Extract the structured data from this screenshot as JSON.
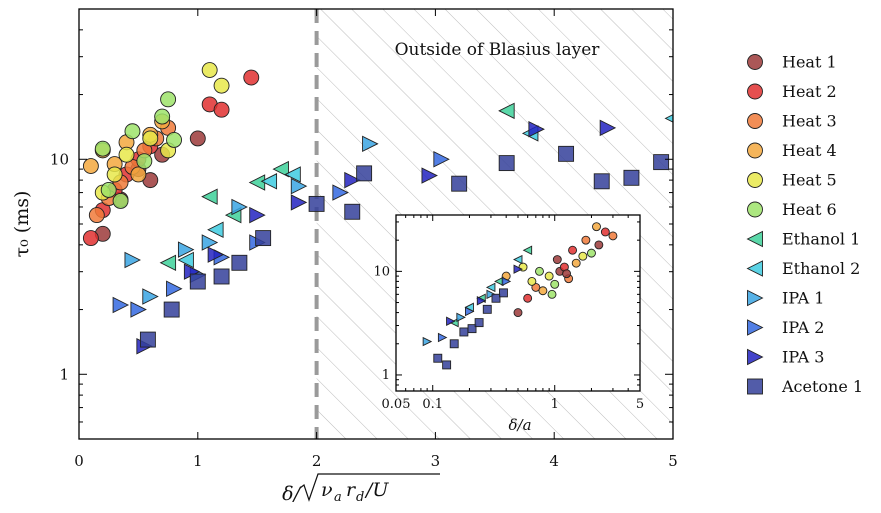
{
  "chart_data": [
    {
      "type": "scatter",
      "title": "",
      "xlabel": "δ/√(ν_a r_d/U)",
      "ylabel": "τ₀ (ms)",
      "xlim": [
        0,
        5
      ],
      "ylim": [
        0.5,
        50
      ],
      "yscale": "log",
      "xticks": [
        "0",
        "1",
        "2",
        "3",
        "4",
        "5"
      ],
      "yticks": [
        "1",
        "10"
      ],
      "grid": false,
      "legend_position": "outside-right",
      "vline": {
        "x": 2,
        "style": "dashed",
        "color": "#9a9a9a"
      },
      "shaded_region": {
        "x_from": 2,
        "x_to": 5,
        "pattern": "diagonal-hatch",
        "label": "Outside of Blasius layer"
      },
      "series": [
        {
          "name": "Heat 1",
          "marker": "circle",
          "color": "#9c3a3a",
          "points": [
            [
              0.2,
              4.5
            ],
            [
              0.35,
              6.5
            ],
            [
              0.5,
              9
            ],
            [
              0.6,
              8
            ],
            [
              0.7,
              10.5
            ],
            [
              1.0,
              12.5
            ]
          ]
        },
        {
          "name": "Heat 2",
          "marker": "circle",
          "color": "#e03030",
          "points": [
            [
              0.1,
              4.3
            ],
            [
              0.2,
              5.8
            ],
            [
              0.3,
              7.2
            ],
            [
              0.4,
              8.5
            ],
            [
              0.5,
              10
            ],
            [
              0.6,
              11.5
            ],
            [
              1.1,
              18
            ],
            [
              1.2,
              17
            ],
            [
              1.45,
              24
            ]
          ]
        },
        {
          "name": "Heat 3",
          "marker": "circle",
          "color": "#f07a3a",
          "points": [
            [
              0.15,
              5.5
            ],
            [
              0.25,
              6.6
            ],
            [
              0.35,
              7.8
            ],
            [
              0.45,
              9.2
            ],
            [
              0.55,
              11
            ],
            [
              0.65,
              12.5
            ],
            [
              0.75,
              14
            ]
          ]
        },
        {
          "name": "Heat 4",
          "marker": "circle",
          "color": "#f3a83e",
          "points": [
            [
              0.1,
              9.3
            ],
            [
              0.2,
              11
            ],
            [
              0.3,
              9.5
            ],
            [
              0.4,
              12
            ],
            [
              0.5,
              8.5
            ],
            [
              0.6,
              13
            ],
            [
              0.7,
              15
            ]
          ]
        },
        {
          "name": "Heat 5",
          "marker": "circle",
          "color": "#e7e74a",
          "points": [
            [
              0.2,
              7
            ],
            [
              0.3,
              8.5
            ],
            [
              0.4,
              10.5
            ],
            [
              0.6,
              12.5
            ],
            [
              0.75,
              11
            ],
            [
              1.1,
              26
            ],
            [
              1.2,
              22
            ]
          ]
        },
        {
          "name": "Heat 6",
          "marker": "circle",
          "color": "#9ee36a",
          "points": [
            [
              0.2,
              11.2
            ],
            [
              0.25,
              7.2
            ],
            [
              0.35,
              6.4
            ],
            [
              0.45,
              13.5
            ],
            [
              0.55,
              9.8
            ],
            [
              0.75,
              19
            ],
            [
              0.7,
              15.8
            ],
            [
              0.8,
              12.3
            ]
          ]
        },
        {
          "name": "Ethanol 1",
          "marker": "triangle-left",
          "color": "#3ed19a",
          "points": [
            [
              0.75,
              3.3
            ],
            [
              1.1,
              6.7
            ],
            [
              1.3,
              5.5
            ],
            [
              1.5,
              7.8
            ],
            [
              1.7,
              9.0
            ],
            [
              3.6,
              16.8
            ]
          ]
        },
        {
          "name": "Ethanol 2",
          "marker": "triangle-left",
          "color": "#3ecbe0",
          "points": [
            [
              0.9,
              3.4
            ],
            [
              1.15,
              4.7
            ],
            [
              1.6,
              7.9
            ],
            [
              1.8,
              8.5
            ],
            [
              3.8,
              13.2
            ],
            [
              5.0,
              15.5
            ]
          ]
        },
        {
          "name": "IPA 1",
          "marker": "triangle-right",
          "color": "#3aa4e3",
          "points": [
            [
              0.45,
              3.4
            ],
            [
              0.6,
              2.3
            ],
            [
              0.9,
              3.8
            ],
            [
              1.1,
              4.1
            ],
            [
              1.35,
              6.0
            ],
            [
              1.85,
              7.5
            ],
            [
              2.45,
              11.8
            ]
          ]
        },
        {
          "name": "IPA 2",
          "marker": "triangle-right",
          "color": "#3468e0",
          "points": [
            [
              0.35,
              2.1
            ],
            [
              0.5,
              2.0
            ],
            [
              0.8,
              2.5
            ],
            [
              1.0,
              2.9
            ],
            [
              1.2,
              3.5
            ],
            [
              1.5,
              4.1
            ],
            [
              2.2,
              7.0
            ],
            [
              3.05,
              10.0
            ]
          ]
        },
        {
          "name": "IPA 3",
          "marker": "triangle-right",
          "color": "#2323c0",
          "points": [
            [
              0.55,
              1.35
            ],
            [
              0.95,
              3.0
            ],
            [
              1.15,
              3.6
            ],
            [
              1.5,
              5.5
            ],
            [
              1.85,
              6.3
            ],
            [
              2.3,
              8.0
            ],
            [
              2.95,
              8.4
            ],
            [
              3.85,
              13.8
            ],
            [
              4.45,
              14.0
            ]
          ]
        },
        {
          "name": "Acetone 1",
          "marker": "square",
          "color": "#34409a",
          "points": [
            [
              0.58,
              1.45
            ],
            [
              0.78,
              2.0
            ],
            [
              1.0,
              2.7
            ],
            [
              1.2,
              2.85
            ],
            [
              1.35,
              3.3
            ],
            [
              1.55,
              4.3
            ],
            [
              2.0,
              6.2
            ],
            [
              2.3,
              5.7
            ],
            [
              2.4,
              8.6
            ],
            [
              3.2,
              7.7
            ],
            [
              3.6,
              9.6
            ],
            [
              4.1,
              10.6
            ],
            [
              4.4,
              7.9
            ],
            [
              4.65,
              8.2
            ],
            [
              4.9,
              9.7
            ]
          ]
        }
      ]
    },
    {
      "type": "scatter",
      "role": "inset",
      "xlabel": "δ/a",
      "xscale": "log",
      "yscale": "log",
      "xlim": [
        0.05,
        5
      ],
      "ylim": [
        0.7,
        35
      ],
      "xticks": [
        "0.05",
        "0.1",
        "1",
        "5"
      ],
      "yticks": [
        "1",
        "10"
      ],
      "series": [
        {
          "name": "Heat",
          "marker": "circle",
          "colors": [
            "#9c3a3a",
            "#e03030",
            "#f07a3a",
            "#f3a83e",
            "#e7e74a",
            "#9ee36a"
          ],
          "points": [
            [
              0.5,
              4
            ],
            [
              0.6,
              5.5
            ],
            [
              0.7,
              7
            ],
            [
              0.8,
              6.5
            ],
            [
              0.9,
              9
            ],
            [
              1.0,
              7.5
            ],
            [
              1.1,
              10
            ],
            [
              1.2,
              11
            ],
            [
              1.3,
              8.5
            ],
            [
              1.5,
              12
            ],
            [
              1.7,
              14
            ],
            [
              2.0,
              15
            ],
            [
              2.3,
              18
            ],
            [
              2.6,
              24
            ],
            [
              3.0,
              22
            ],
            [
              0.4,
              9
            ],
            [
              0.55,
              11
            ],
            [
              0.75,
              10
            ],
            [
              1.05,
              13
            ],
            [
              1.4,
              16
            ],
            [
              1.8,
              20
            ],
            [
              2.2,
              27
            ],
            [
              0.65,
              8
            ],
            [
              0.95,
              6
            ],
            [
              1.25,
              9.5
            ]
          ]
        },
        {
          "name": "Ethanol",
          "marker": "triangle-left",
          "colors": [
            "#3ed19a",
            "#3ecbe0"
          ],
          "points": [
            [
              0.15,
              3.2
            ],
            [
              0.2,
              4.5
            ],
            [
              0.25,
              5.5
            ],
            [
              0.3,
              7
            ],
            [
              0.35,
              8
            ],
            [
              0.5,
              13
            ],
            [
              0.6,
              16
            ]
          ]
        },
        {
          "name": "IPA",
          "marker": "triangle-right",
          "colors": [
            "#3aa4e3",
            "#3468e0",
            "#2323c0"
          ],
          "points": [
            [
              0.09,
              2.1
            ],
            [
              0.12,
              2.3
            ],
            [
              0.14,
              3.3
            ],
            [
              0.17,
              3.6
            ],
            [
              0.2,
              4.1
            ],
            [
              0.25,
              5.2
            ],
            [
              0.3,
              6
            ],
            [
              0.4,
              8
            ],
            [
              0.5,
              10.5
            ]
          ]
        },
        {
          "name": "Acetone",
          "marker": "square",
          "colors": [
            "#34409a"
          ],
          "points": [
            [
              0.11,
              1.45
            ],
            [
              0.13,
              1.25
            ],
            [
              0.15,
              2.0
            ],
            [
              0.18,
              2.6
            ],
            [
              0.21,
              2.8
            ],
            [
              0.24,
              3.2
            ],
            [
              0.28,
              4.3
            ],
            [
              0.33,
              5.5
            ],
            [
              0.38,
              6.2
            ]
          ]
        }
      ]
    }
  ],
  "labels": {
    "region_label": "Outside of Blasius layer",
    "ylabel": "τ₀ (ms)",
    "xlabel_prefix": "δ/",
    "xlabel_root": "ν",
    "xlabel_sub_a": "a",
    "xlabel_r": "r",
    "xlabel_sub_d": "d",
    "xlabel_tail": "/U",
    "inset_xlabel": "δ/a"
  }
}
